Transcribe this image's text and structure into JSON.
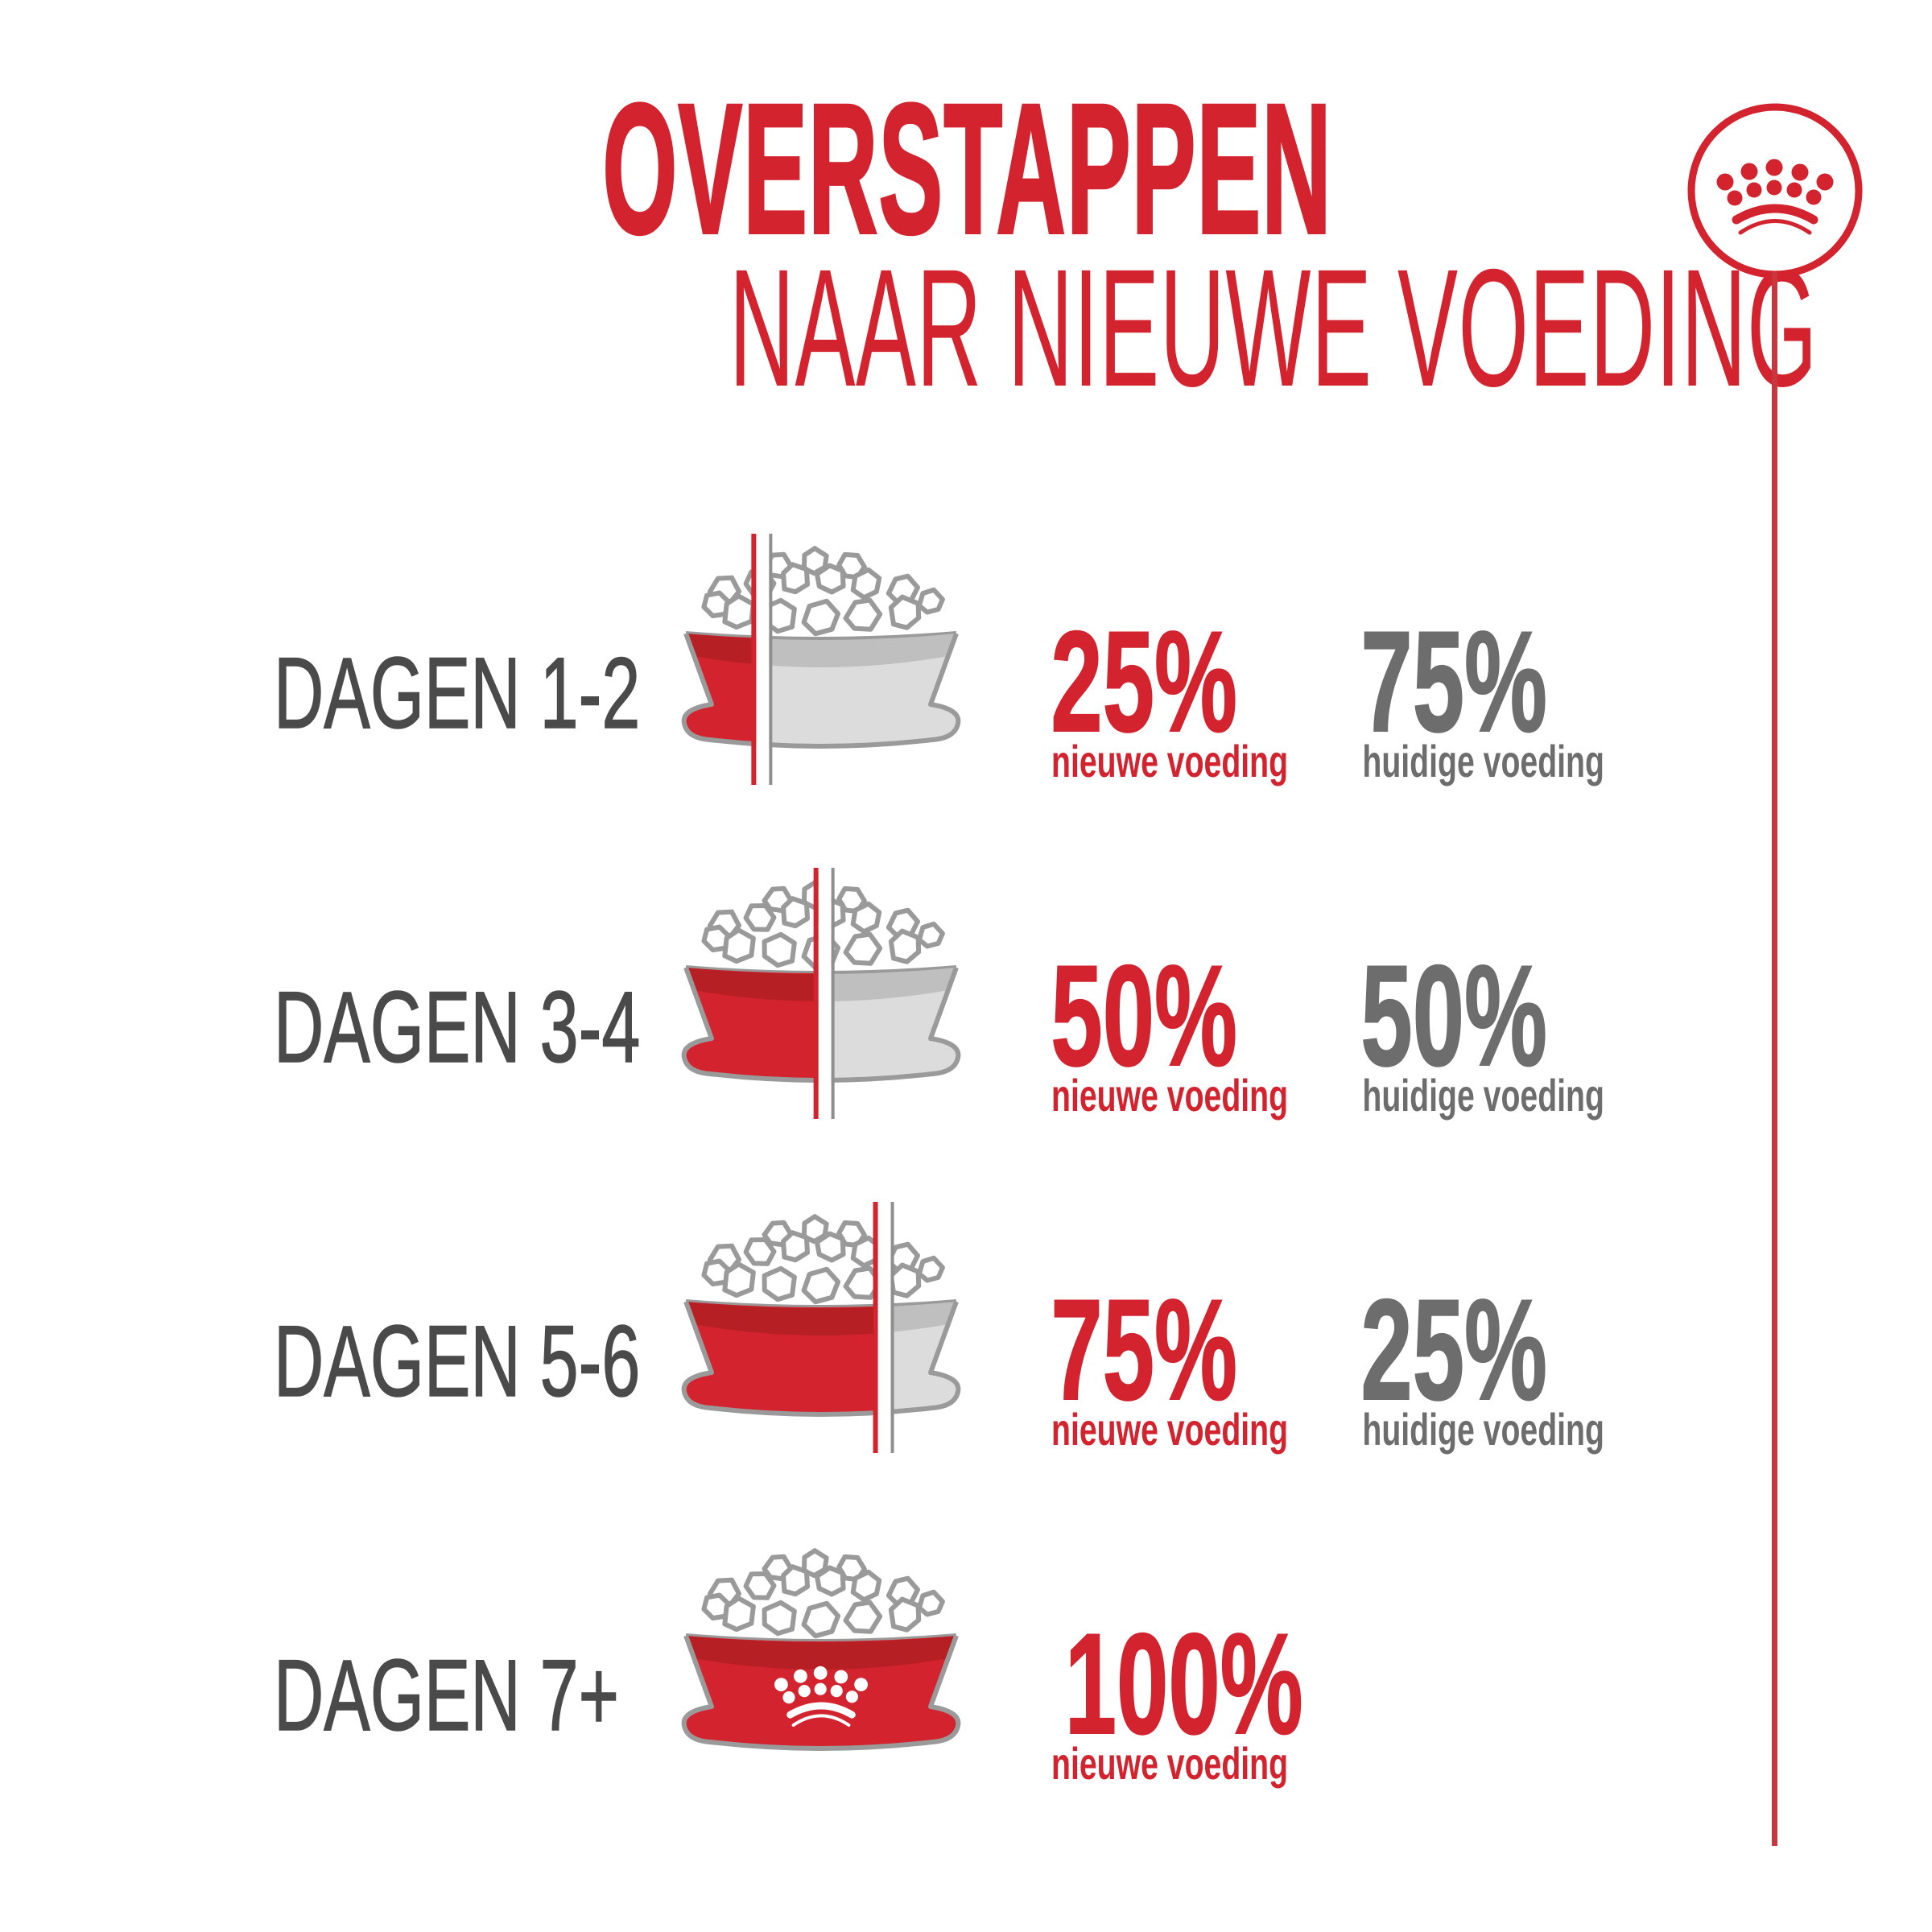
{
  "header": {
    "title": "OVERSTAPPEN",
    "subtitle": "NAAR NIEUWE VOEDING"
  },
  "brand": {
    "logo_icon": "royal-canin-crown-icon"
  },
  "colors": {
    "red": "#d2232e",
    "red_dark": "#b62025",
    "label_gray": "#4a4a4a",
    "percent_gray": "#6d6d6d",
    "bowl_gray": "#dcdcdc",
    "bowl_band_gray": "#bfbfbf",
    "outline_gray": "#9a9a9a",
    "divider_gray": "#8f8f8f",
    "timeline_red": "#c9373e"
  },
  "rows": [
    {
      "label": "DAGEN 1-2",
      "bowl_icon": "food-bowl-25-new",
      "split_percent": 26,
      "new_percent": "25%",
      "new_caption": "nieuwe voeding",
      "current_percent": "75%",
      "current_caption": "huidige voeding"
    },
    {
      "label": "DAGEN 3-4",
      "bowl_icon": "food-bowl-50-new",
      "split_percent": 49,
      "new_percent": "50%",
      "new_caption": "nieuwe voeding",
      "current_percent": "50%",
      "current_caption": "huidige voeding"
    },
    {
      "label": "DAGEN 5-6",
      "bowl_icon": "food-bowl-75-new",
      "split_percent": 71,
      "new_percent": "75%",
      "new_caption": "nieuwe voeding",
      "current_percent": "25%",
      "current_caption": "huidige voeding"
    },
    {
      "label": "DAGEN 7+",
      "bowl_icon": "food-bowl-100-new",
      "split_percent": 100,
      "new_percent": "100%",
      "new_caption": "nieuwe voeding",
      "current_percent": null,
      "current_caption": null
    }
  ]
}
